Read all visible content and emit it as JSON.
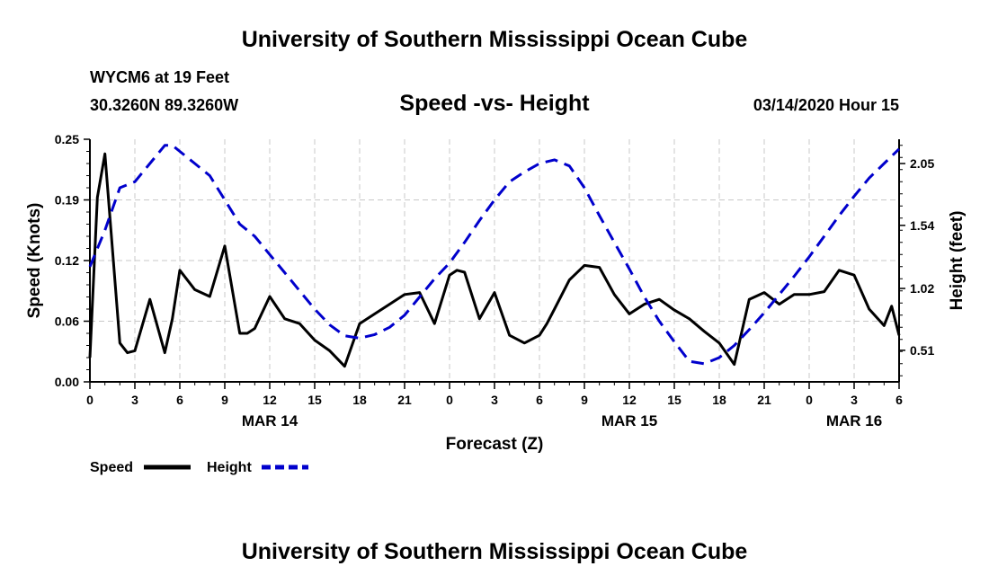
{
  "page": {
    "title_top": "University of Southern Mississippi Ocean Cube",
    "title_bottom": "University of Southern Mississippi Ocean Cube",
    "station": "WYCM6 at 19 Feet",
    "coords": "30.3260N 89.3260W",
    "datetime": "03/14/2020 Hour 15"
  },
  "colors": {
    "speed": "#000000",
    "height": "#0000cc",
    "grid": "#c8c8c8"
  },
  "chart_data": {
    "type": "line",
    "title": "Speed -vs- Height",
    "xlabel": "Forecast (Z)",
    "ylabel": "Speed (Knots)",
    "y2label": "Height (feet)",
    "xlim": [
      0,
      54
    ],
    "ylim": [
      0,
      0.25
    ],
    "y2lim": [
      0.25,
      2.25
    ],
    "x_ticks": [
      0,
      3,
      6,
      9,
      12,
      15,
      18,
      21,
      24,
      27,
      30,
      33,
      36,
      39,
      42,
      45,
      48,
      51,
      54
    ],
    "x_tick_labels": [
      "0",
      "3",
      "6",
      "9",
      "12",
      "15",
      "18",
      "21",
      "0",
      "3",
      "6",
      "9",
      "12",
      "15",
      "18",
      "21",
      "0",
      "3",
      "6"
    ],
    "y_ticks": [
      0,
      0.0625,
      0.125,
      0.1875,
      0.25
    ],
    "y_tick_labels": [
      "0.00",
      "0.06",
      "0.12",
      "0.19",
      "0.25"
    ],
    "y2_ticks": [
      0.51,
      1.02,
      1.54,
      2.05
    ],
    "y2_tick_labels": [
      "0.51",
      "1.02",
      "1.54",
      "2.05"
    ],
    "date_labels": [
      {
        "x": 12,
        "label": "MAR 14"
      },
      {
        "x": 36,
        "label": "MAR 15"
      },
      {
        "x": 51,
        "label": "MAR 16"
      }
    ],
    "legend": [
      {
        "name": "Speed",
        "style": "solid"
      },
      {
        "name": "Height",
        "style": "dashed"
      }
    ],
    "series": [
      {
        "name": "Speed",
        "axis": "left",
        "style": "solid",
        "x": [
          0,
          0.5,
          1,
          2,
          2.5,
          3,
          4,
          5,
          5.5,
          6,
          7,
          8,
          9,
          10,
          10.5,
          11,
          12,
          13,
          14,
          15,
          16,
          17,
          18,
          19,
          20,
          21,
          22,
          23,
          24,
          24.5,
          25,
          26,
          27,
          28,
          29,
          30,
          30.5,
          31,
          32,
          33,
          34,
          35,
          36,
          37,
          38,
          39,
          40,
          41,
          42,
          43,
          44,
          45,
          46,
          47,
          48,
          49,
          50,
          51,
          52,
          53,
          53.5,
          54
        ],
        "values": [
          0.025,
          0.19,
          0.235,
          0.04,
          0.03,
          0.032,
          0.085,
          0.03,
          0.065,
          0.115,
          0.095,
          0.088,
          0.14,
          0.05,
          0.05,
          0.055,
          0.088,
          0.065,
          0.06,
          0.043,
          0.032,
          0.016,
          0.06,
          0.07,
          0.08,
          0.09,
          0.092,
          0.06,
          0.11,
          0.115,
          0.113,
          0.065,
          0.092,
          0.048,
          0.04,
          0.048,
          0.06,
          0.075,
          0.105,
          0.12,
          0.118,
          0.09,
          0.07,
          0.08,
          0.085,
          0.074,
          0.065,
          0.052,
          0.04,
          0.018,
          0.085,
          0.092,
          0.08,
          0.09,
          0.09,
          0.093,
          0.115,
          0.11,
          0.075,
          0.058,
          0.078,
          0.048
        ]
      },
      {
        "name": "Height",
        "axis": "right",
        "style": "dashed",
        "x": [
          0,
          1,
          2,
          3,
          4,
          5,
          5.5,
          6,
          7,
          8,
          9,
          10,
          11,
          12,
          13,
          14,
          15,
          16,
          17,
          18,
          19,
          20,
          21,
          22,
          23,
          24,
          25,
          26,
          27,
          28,
          29,
          30,
          31,
          32,
          33,
          34,
          35,
          36,
          37,
          38,
          39,
          40,
          41,
          42,
          43,
          44,
          45,
          46,
          47,
          48,
          49,
          50,
          51,
          52,
          53,
          54
        ],
        "values": [
          1.2,
          1.5,
          1.85,
          1.9,
          2.05,
          2.2,
          2.2,
          2.15,
          2.05,
          1.95,
          1.75,
          1.55,
          1.45,
          1.3,
          1.15,
          1.0,
          0.85,
          0.72,
          0.63,
          0.61,
          0.64,
          0.7,
          0.8,
          0.95,
          1.1,
          1.23,
          1.4,
          1.58,
          1.75,
          1.9,
          1.98,
          2.05,
          2.08,
          2.03,
          1.85,
          1.62,
          1.4,
          1.18,
          0.95,
          0.75,
          0.58,
          0.42,
          0.4,
          0.45,
          0.55,
          0.68,
          0.82,
          0.97,
          1.12,
          1.28,
          1.45,
          1.62,
          1.78,
          1.93,
          2.05,
          2.17
        ]
      }
    ]
  }
}
